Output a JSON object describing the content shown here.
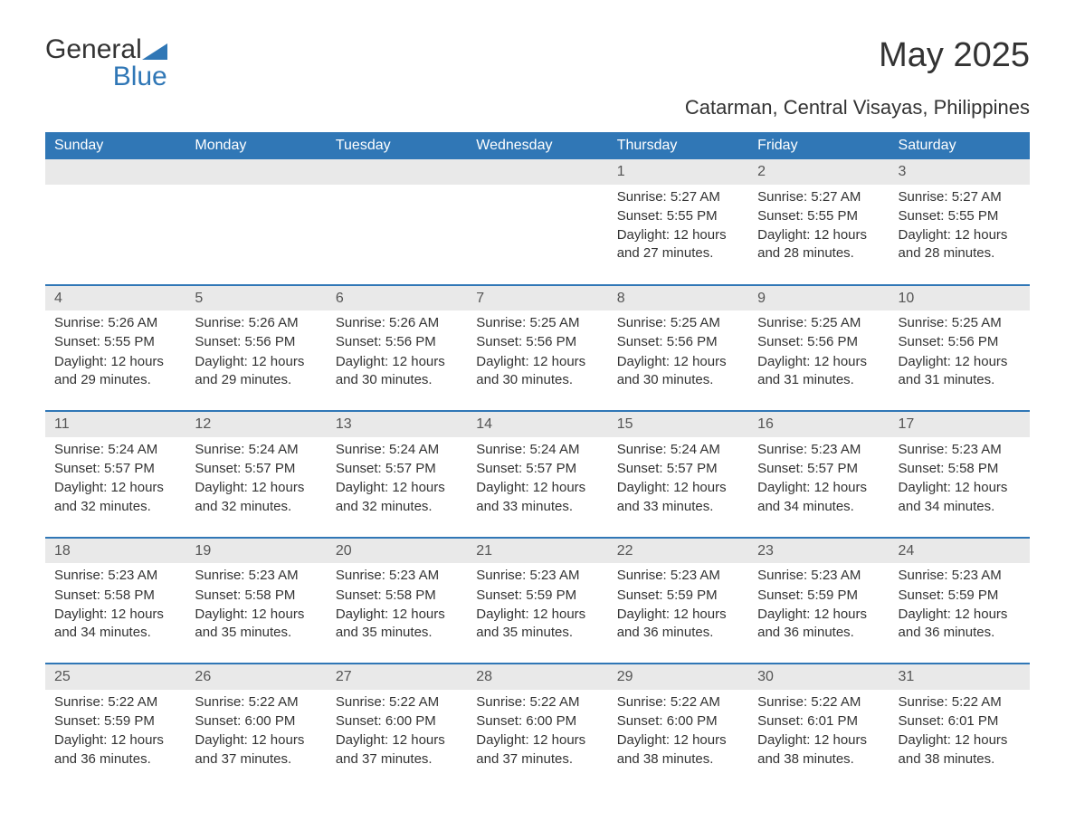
{
  "logo": {
    "line1": "General",
    "line2": "Blue"
  },
  "title": "May 2025",
  "subtitle": "Catarman, Central Visayas, Philippines",
  "colors": {
    "accent": "#3077b6",
    "header_bg": "#3077b6",
    "header_text": "#ffffff",
    "daynum_bg": "#e9e9e9",
    "daynum_text": "#555555",
    "body_text": "#333333",
    "page_bg": "#ffffff"
  },
  "typography": {
    "title_fontsize": 38,
    "subtitle_fontsize": 22,
    "header_fontsize": 16,
    "body_fontsize": 15
  },
  "weekday_labels": [
    "Sunday",
    "Monday",
    "Tuesday",
    "Wednesday",
    "Thursday",
    "Friday",
    "Saturday"
  ],
  "labels": {
    "sunrise": "Sunrise: ",
    "sunset": "Sunset: ",
    "daylight": "Daylight: "
  },
  "days": {
    "1": {
      "sunrise": "5:27 AM",
      "sunset": "5:55 PM",
      "daylight": "12 hours and 27 minutes."
    },
    "2": {
      "sunrise": "5:27 AM",
      "sunset": "5:55 PM",
      "daylight": "12 hours and 28 minutes."
    },
    "3": {
      "sunrise": "5:27 AM",
      "sunset": "5:55 PM",
      "daylight": "12 hours and 28 minutes."
    },
    "4": {
      "sunrise": "5:26 AM",
      "sunset": "5:55 PM",
      "daylight": "12 hours and 29 minutes."
    },
    "5": {
      "sunrise": "5:26 AM",
      "sunset": "5:56 PM",
      "daylight": "12 hours and 29 minutes."
    },
    "6": {
      "sunrise": "5:26 AM",
      "sunset": "5:56 PM",
      "daylight": "12 hours and 30 minutes."
    },
    "7": {
      "sunrise": "5:25 AM",
      "sunset": "5:56 PM",
      "daylight": "12 hours and 30 minutes."
    },
    "8": {
      "sunrise": "5:25 AM",
      "sunset": "5:56 PM",
      "daylight": "12 hours and 30 minutes."
    },
    "9": {
      "sunrise": "5:25 AM",
      "sunset": "5:56 PM",
      "daylight": "12 hours and 31 minutes."
    },
    "10": {
      "sunrise": "5:25 AM",
      "sunset": "5:56 PM",
      "daylight": "12 hours and 31 minutes."
    },
    "11": {
      "sunrise": "5:24 AM",
      "sunset": "5:57 PM",
      "daylight": "12 hours and 32 minutes."
    },
    "12": {
      "sunrise": "5:24 AM",
      "sunset": "5:57 PM",
      "daylight": "12 hours and 32 minutes."
    },
    "13": {
      "sunrise": "5:24 AM",
      "sunset": "5:57 PM",
      "daylight": "12 hours and 32 minutes."
    },
    "14": {
      "sunrise": "5:24 AM",
      "sunset": "5:57 PM",
      "daylight": "12 hours and 33 minutes."
    },
    "15": {
      "sunrise": "5:24 AM",
      "sunset": "5:57 PM",
      "daylight": "12 hours and 33 minutes."
    },
    "16": {
      "sunrise": "5:23 AM",
      "sunset": "5:57 PM",
      "daylight": "12 hours and 34 minutes."
    },
    "17": {
      "sunrise": "5:23 AM",
      "sunset": "5:58 PM",
      "daylight": "12 hours and 34 minutes."
    },
    "18": {
      "sunrise": "5:23 AM",
      "sunset": "5:58 PM",
      "daylight": "12 hours and 34 minutes."
    },
    "19": {
      "sunrise": "5:23 AM",
      "sunset": "5:58 PM",
      "daylight": "12 hours and 35 minutes."
    },
    "20": {
      "sunrise": "5:23 AM",
      "sunset": "5:58 PM",
      "daylight": "12 hours and 35 minutes."
    },
    "21": {
      "sunrise": "5:23 AM",
      "sunset": "5:59 PM",
      "daylight": "12 hours and 35 minutes."
    },
    "22": {
      "sunrise": "5:23 AM",
      "sunset": "5:59 PM",
      "daylight": "12 hours and 36 minutes."
    },
    "23": {
      "sunrise": "5:23 AM",
      "sunset": "5:59 PM",
      "daylight": "12 hours and 36 minutes."
    },
    "24": {
      "sunrise": "5:23 AM",
      "sunset": "5:59 PM",
      "daylight": "12 hours and 36 minutes."
    },
    "25": {
      "sunrise": "5:22 AM",
      "sunset": "5:59 PM",
      "daylight": "12 hours and 36 minutes."
    },
    "26": {
      "sunrise": "5:22 AM",
      "sunset": "6:00 PM",
      "daylight": "12 hours and 37 minutes."
    },
    "27": {
      "sunrise": "5:22 AM",
      "sunset": "6:00 PM",
      "daylight": "12 hours and 37 minutes."
    },
    "28": {
      "sunrise": "5:22 AM",
      "sunset": "6:00 PM",
      "daylight": "12 hours and 37 minutes."
    },
    "29": {
      "sunrise": "5:22 AM",
      "sunset": "6:00 PM",
      "daylight": "12 hours and 38 minutes."
    },
    "30": {
      "sunrise": "5:22 AM",
      "sunset": "6:01 PM",
      "daylight": "12 hours and 38 minutes."
    },
    "31": {
      "sunrise": "5:22 AM",
      "sunset": "6:01 PM",
      "daylight": "12 hours and 38 minutes."
    }
  },
  "grid": [
    [
      null,
      null,
      null,
      null,
      "1",
      "2",
      "3"
    ],
    [
      "4",
      "5",
      "6",
      "7",
      "8",
      "9",
      "10"
    ],
    [
      "11",
      "12",
      "13",
      "14",
      "15",
      "16",
      "17"
    ],
    [
      "18",
      "19",
      "20",
      "21",
      "22",
      "23",
      "24"
    ],
    [
      "25",
      "26",
      "27",
      "28",
      "29",
      "30",
      "31"
    ]
  ]
}
